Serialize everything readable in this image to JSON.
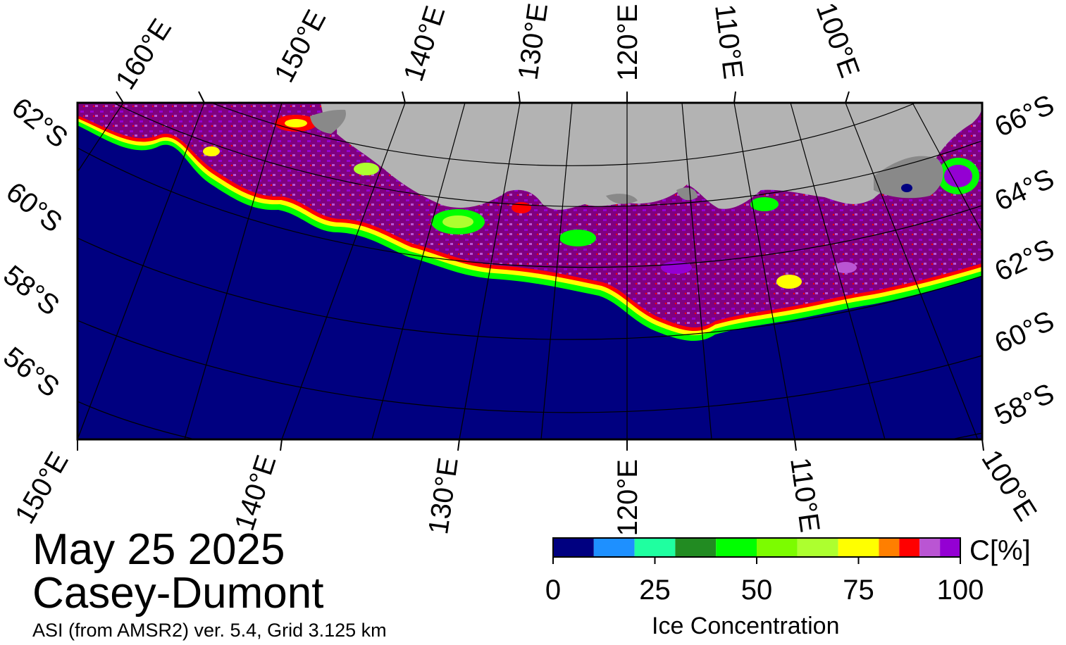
{
  "map": {
    "top_lon_labels": [
      "160°E",
      "150°E",
      "140°E",
      "130°E",
      "120°E",
      "110°E",
      "100°E"
    ],
    "bottom_lon_labels": [
      "150°E",
      "140°E",
      "130°E",
      "120°E",
      "110°E",
      "100°E"
    ],
    "left_lat_labels": [
      "62°S",
      "60°S",
      "58°S",
      "56°S"
    ],
    "right_lat_labels": [
      "66°S",
      "64°S",
      "62°S",
      "60°S",
      "58°S"
    ],
    "colors": {
      "ocean": "#000080",
      "land": "#b3b3b3",
      "ice_shelf": "#898989",
      "frame": "#000000",
      "graticule": "#000000"
    }
  },
  "date": "May 25 2025",
  "region": "Casey-Dumont",
  "source": "ASI (from AMSR2) ver. 5.4,  Grid 3.125 km",
  "colorbar": {
    "label": "Ice Concentration",
    "unit": "C[%]",
    "ticks": [
      "0",
      "25",
      "50",
      "75",
      "100"
    ],
    "tick_values": [
      0,
      25,
      50,
      75,
      100
    ],
    "range": [
      0,
      100
    ],
    "bins": [
      {
        "from": 0,
        "to": 10,
        "color": "#000080"
      },
      {
        "from": 10,
        "to": 20,
        "color": "#1e90ff"
      },
      {
        "from": 20,
        "to": 30,
        "color": "#1fffa0"
      },
      {
        "from": 30,
        "to": 40,
        "color": "#228b22"
      },
      {
        "from": 40,
        "to": 50,
        "color": "#00ff00"
      },
      {
        "from": 50,
        "to": 60,
        "color": "#7cfc00"
      },
      {
        "from": 60,
        "to": 70,
        "color": "#adff2f"
      },
      {
        "from": 70,
        "to": 80,
        "color": "#ffff00"
      },
      {
        "from": 80,
        "to": 85,
        "color": "#ff7f00"
      },
      {
        "from": 85,
        "to": 90,
        "color": "#ff0000"
      },
      {
        "from": 90,
        "to": 95,
        "color": "#ba55d3"
      },
      {
        "from": 95,
        "to": 100,
        "color": "#9400d3"
      }
    ],
    "pack_ice_color": "#800080"
  }
}
